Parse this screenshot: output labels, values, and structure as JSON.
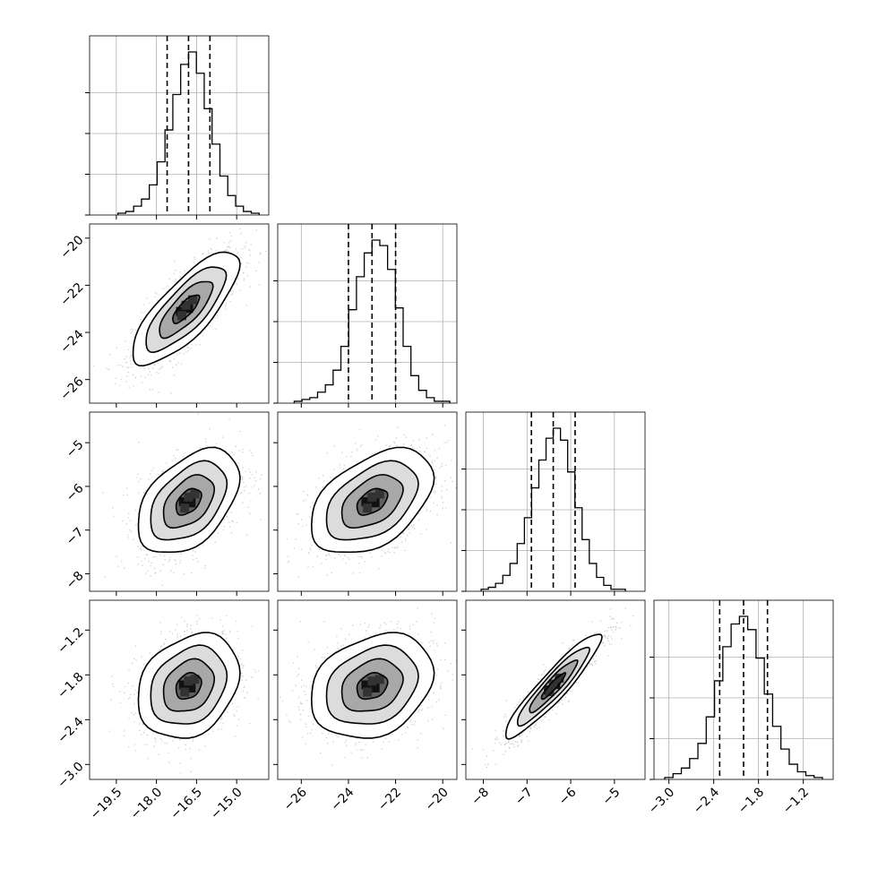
{
  "chart_data": {
    "type": "corner",
    "parameters": [
      {
        "range": [
          -20.5,
          -13.8
        ],
        "median": -16.8,
        "q16": -17.6,
        "q84": -16.0,
        "ticks": [
          -19.5,
          -18.0,
          -16.5,
          -15.0
        ],
        "tick_labels": [
          "−19.5",
          "−18.0",
          "−16.5",
          "−15.0"
        ],
        "hist_values": [
          1,
          2,
          5,
          9,
          17,
          30,
          48,
          68,
          85,
          92,
          80,
          60,
          40,
          22,
          11,
          5,
          2,
          1
        ]
      },
      {
        "range": [
          -27.0,
          -19.4
        ],
        "median": -23.0,
        "q16": -24.0,
        "q84": -22.0,
        "ticks": [
          -26,
          -24,
          -22,
          -20
        ],
        "tick_labels": [
          "−26",
          "−24",
          "−22",
          "−20"
        ],
        "hist_values": [
          1,
          2,
          3,
          6,
          10,
          18,
          31,
          51,
          69,
          82,
          89,
          86,
          73,
          52,
          31,
          15,
          7,
          3,
          1,
          1
        ]
      },
      {
        "range": [
          -8.4,
          -4.3
        ],
        "median": -6.4,
        "q16": -6.9,
        "q84": -5.9,
        "ticks": [
          -8,
          -7,
          -6,
          -5
        ],
        "tick_labels": [
          "−8",
          "−7",
          "−6",
          "−5"
        ],
        "hist_values": [
          1,
          2,
          4,
          8,
          14,
          24,
          37,
          52,
          66,
          77,
          82,
          76,
          60,
          42,
          26,
          14,
          7,
          3,
          1,
          1
        ]
      },
      {
        "range": [
          -3.2,
          -0.8
        ],
        "median": -2.0,
        "q16": -2.32,
        "q84": -1.68,
        "ticks": [
          -3.0,
          -2.4,
          -1.8,
          -1.2
        ],
        "tick_labels": [
          "−3.0",
          "−2.4",
          "−1.8",
          "−1.2"
        ],
        "hist_values": [
          1,
          3,
          6,
          11,
          19,
          33,
          52,
          70,
          82,
          86,
          79,
          64,
          45,
          28,
          16,
          8,
          4,
          2,
          1
        ]
      }
    ],
    "pairs": [
      {
        "row": 1,
        "col": 0,
        "x_center": -16.9,
        "y_center": -23.0,
        "sx": 1.0,
        "sy": 1.2,
        "rho": 0.78
      },
      {
        "row": 2,
        "col": 0,
        "x_center": -16.8,
        "y_center": -6.35,
        "sx": 0.95,
        "sy": 0.6,
        "rho": 0.45
      },
      {
        "row": 2,
        "col": 1,
        "x_center": -23.0,
        "y_center": -6.35,
        "sx": 1.3,
        "sy": 0.6,
        "rho": 0.45
      },
      {
        "row": 3,
        "col": 0,
        "x_center": -16.8,
        "y_center": -1.95,
        "sx": 0.95,
        "sy": 0.35,
        "rho": 0.25
      },
      {
        "row": 3,
        "col": 1,
        "x_center": -23.0,
        "y_center": -1.95,
        "sx": 1.3,
        "sy": 0.35,
        "rho": 0.25
      },
      {
        "row": 3,
        "col": 2,
        "x_center": -6.4,
        "y_center": -1.95,
        "sx": 0.55,
        "sy": 0.35,
        "rho": 0.93
      }
    ],
    "grid": true,
    "title": "",
    "xlabel": "",
    "ylabel": ""
  }
}
